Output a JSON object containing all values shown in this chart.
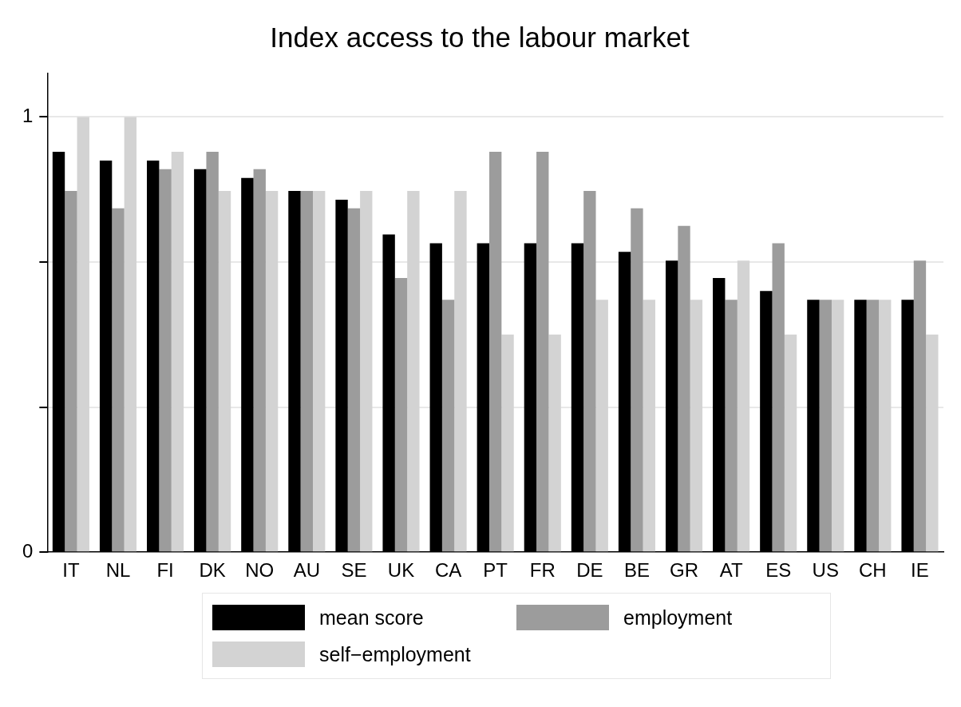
{
  "chart_data": {
    "type": "bar",
    "title": "Index access to the labour market",
    "categories": [
      "IT",
      "NL",
      "FI",
      "DK",
      "NO",
      "AU",
      "SE",
      "UK",
      "CA",
      "PT",
      "FR",
      "DE",
      "BE",
      "GR",
      "AT",
      "ES",
      "US",
      "CH",
      "IE"
    ],
    "series": [
      {
        "name": "mean score",
        "color": "#000000",
        "values": [
          0.92,
          0.9,
          0.9,
          0.88,
          0.86,
          0.83,
          0.81,
          0.73,
          0.71,
          0.71,
          0.71,
          0.71,
          0.69,
          0.67,
          0.63,
          0.6,
          0.58,
          0.58,
          0.58
        ]
      },
      {
        "name": "employment",
        "color": "#9c9c9c",
        "values": [
          0.83,
          0.79,
          0.88,
          0.92,
          0.88,
          0.83,
          0.79,
          0.63,
          0.58,
          0.92,
          0.92,
          0.83,
          0.79,
          0.75,
          0.58,
          0.71,
          0.58,
          0.58,
          0.67
        ]
      },
      {
        "name": "self−employment",
        "color": "#d3d3d3",
        "values": [
          1,
          1,
          0.92,
          0.83,
          0.83,
          0.83,
          0.83,
          0.83,
          0.83,
          0.5,
          0.5,
          0.58,
          0.58,
          0.58,
          0.67,
          0.5,
          0.58,
          0.58,
          0.5
        ]
      }
    ],
    "ylim": [
      0,
      1.1
    ],
    "yticks": [
      0,
      {
        "value": 0.3333,
        "label": null
      },
      {
        "value": 0.6667,
        "label": null
      },
      1
    ],
    "grid": "y",
    "legend": "bottom"
  }
}
